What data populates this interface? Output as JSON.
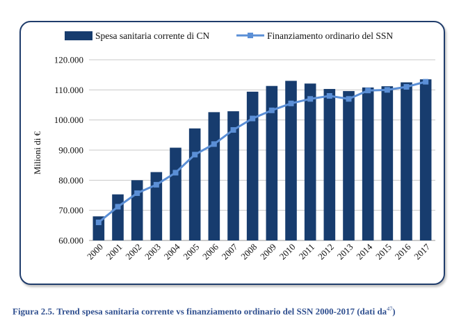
{
  "chart_data": {
    "type": "bar+line",
    "categories": [
      "2000",
      "2001",
      "2002",
      "2003",
      "2004",
      "2005",
      "2006",
      "2007",
      "2008",
      "2009",
      "2010",
      "2011",
      "2012",
      "2013",
      "2014",
      "2015",
      "2016",
      "2017"
    ],
    "series": [
      {
        "name": "Spesa sanitaria corrente di CN",
        "kind": "bar",
        "color": "#173c6e",
        "values": [
          68000,
          75300,
          80000,
          82700,
          90800,
          97200,
          102600,
          102900,
          109400,
          111300,
          113000,
          112100,
          110300,
          109600,
          110800,
          111200,
          112500,
          113500
        ]
      },
      {
        "name": "Finanziamento ordinario del SSN",
        "kind": "line",
        "color": "#5b8fd6",
        "values": [
          66000,
          71200,
          75700,
          78500,
          82500,
          88500,
          92000,
          96700,
          100500,
          103200,
          105500,
          107000,
          108000,
          107000,
          109800,
          110000,
          111000,
          112700
        ]
      }
    ],
    "ylabel": "Milioni di €",
    "ylim": [
      60000,
      120000
    ],
    "yticks": [
      "60.000",
      "70.000",
      "80.000",
      "90.000",
      "100.000",
      "110.000",
      "120.000"
    ],
    "grid": true,
    "legend_position": "top"
  },
  "caption": {
    "text": "Figura 2.5. Trend spesa sanitaria corrente vs finanziamento ordinario del SSN 2000-2017 (dati da",
    "superscript": "47",
    "closing": ")"
  }
}
